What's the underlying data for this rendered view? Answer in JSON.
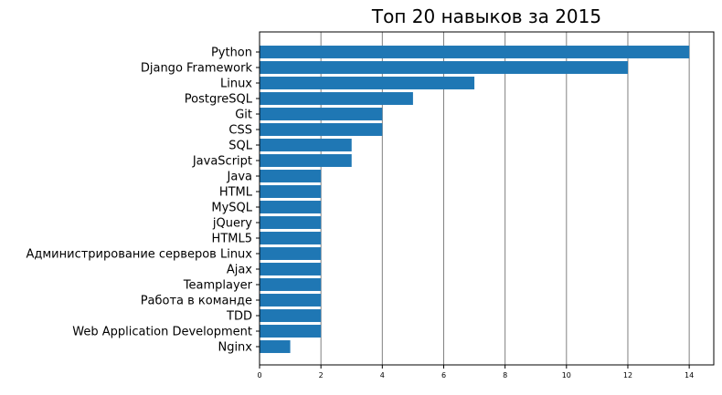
{
  "chart_data": {
    "type": "bar",
    "orientation": "horizontal",
    "title": "Топ 20 навыков за 2015",
    "xlabel": "",
    "ylabel": "",
    "xlim": [
      0,
      14.8
    ],
    "x_ticks": [
      0,
      2,
      4,
      6,
      8,
      10,
      12,
      14
    ],
    "grid": "vertical",
    "bar_color": "#1f77b4",
    "grid_color": "#808080",
    "categories": [
      "Python",
      "Django Framework",
      "Linux",
      "PostgreSQL",
      "Git",
      "CSS",
      "SQL",
      "JavaScript",
      "Java",
      "HTML",
      "MySQL",
      "jQuery",
      "HTML5",
      "Администрирование серверов Linux",
      "Ajax",
      "Teamplayer",
      "Работа в команде",
      "TDD",
      "Web Application Development",
      "Nginx"
    ],
    "values": [
      14,
      12,
      7,
      5,
      4,
      4,
      3,
      3,
      2,
      2,
      2,
      2,
      2,
      2,
      2,
      2,
      2,
      2,
      2,
      1
    ]
  }
}
